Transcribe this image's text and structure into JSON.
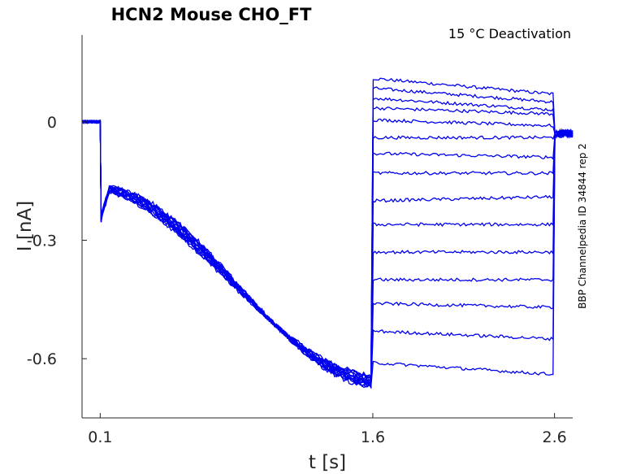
{
  "chart_data": {
    "type": "line",
    "title": "HCN2  Mouse  CHO_FT",
    "condition": "15 °C  Deactivation",
    "side_note": "BBP Channelpedia ID 34844 rep 2",
    "xlabel": "t [s]",
    "ylabel": "I [nA]",
    "xlim": [
      0.0,
      2.7
    ],
    "ylim": [
      -0.75,
      0.22
    ],
    "x_ticks": [
      0.1,
      1.6,
      2.6
    ],
    "x_tick_labels": [
      "0.1",
      "1.6",
      "2.6"
    ],
    "y_ticks": [
      0,
      -0.3,
      -0.6
    ],
    "y_tick_labels": [
      "0",
      "-0.3",
      "-0.6"
    ],
    "grid": false,
    "line_color": "#0000ee",
    "protocol": {
      "holding_end_s": 0.1,
      "prepulse_end_s": 1.6,
      "test_end_s": 2.6,
      "holding_current_nA": 0.0,
      "prepulse_initial_dip_nA": -0.25,
      "prepulse_peak_nA": -0.17,
      "prepulse_final_nA": -0.66,
      "tail_current_nA": -0.03
    },
    "series": [
      {
        "start": 0.11,
        "end": 0.07
      },
      {
        "start": 0.085,
        "end": 0.05
      },
      {
        "start": 0.06,
        "end": 0.03
      },
      {
        "start": 0.035,
        "end": 0.02
      },
      {
        "start": 0.005,
        "end": -0.01
      },
      {
        "start": -0.04,
        "end": -0.04
      },
      {
        "start": -0.08,
        "end": -0.09
      },
      {
        "start": -0.13,
        "end": -0.13
      },
      {
        "start": -0.2,
        "end": -0.19
      },
      {
        "start": -0.26,
        "end": -0.26
      },
      {
        "start": -0.33,
        "end": -0.33
      },
      {
        "start": -0.4,
        "end": -0.4
      },
      {
        "start": -0.46,
        "end": -0.47
      },
      {
        "start": -0.53,
        "end": -0.55
      },
      {
        "start": -0.61,
        "end": -0.64
      }
    ]
  }
}
